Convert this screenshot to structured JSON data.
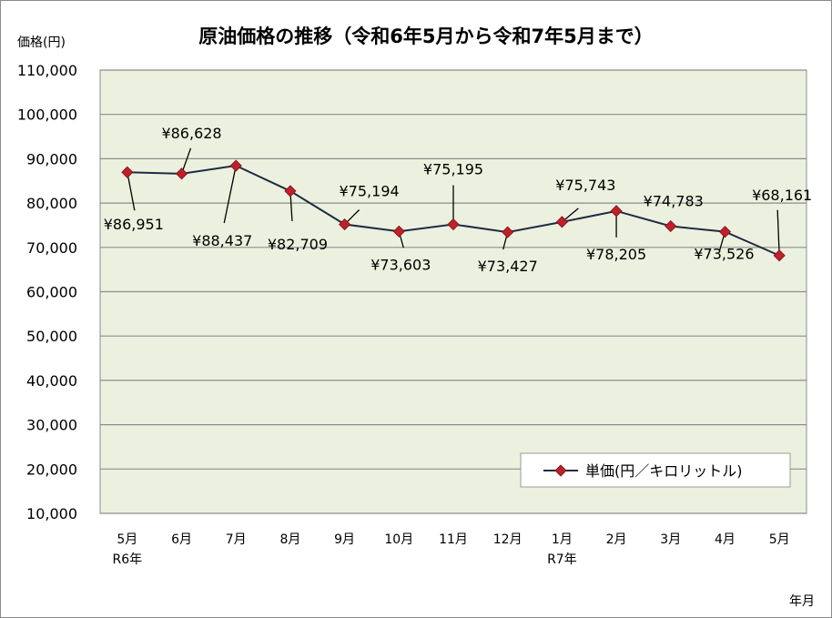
{
  "chart_data": {
    "type": "line",
    "title": "原油価格の推移（令和6年5月から令和7年5月まで）",
    "ylabel": "価格(円)",
    "xlabel": "年月",
    "ylim": [
      10000,
      110000
    ],
    "y_ticks": [
      "10,000",
      "20,000",
      "30,000",
      "40,000",
      "50,000",
      "60,000",
      "70,000",
      "80,000",
      "90,000",
      "100,000",
      "110,000"
    ],
    "categories": [
      "5月",
      "6月",
      "7月",
      "8月",
      "9月",
      "10月",
      "11月",
      "12月",
      "1月",
      "2月",
      "3月",
      "4月",
      "5月"
    ],
    "year_labels": [
      "R6年",
      "",
      "",
      "",
      "",
      "",
      "",
      "",
      "R7年",
      "",
      "",
      "",
      ""
    ],
    "grid": true,
    "legend": "bottom-right",
    "series": [
      {
        "name": "単価(円／キロリットル)",
        "values": [
          86951,
          86628,
          88437,
          82709,
          75194,
          73603,
          75195,
          73427,
          75743,
          78205,
          74783,
          73526,
          68161
        ],
        "labels": [
          "¥86,951",
          "¥86,628",
          "¥88,437",
          "¥82,709",
          "¥75,194",
          "¥73,603",
          "¥75,195",
          "¥73,427",
          "¥75,743",
          "¥78,205",
          "¥74,783",
          "¥73,526",
          "¥68,161"
        ],
        "color": "#1f2a44",
        "marker_color": "#c0202a"
      }
    ],
    "colors": {
      "plot_bg": "#ebf1de",
      "grid": "#8c8c8c"
    }
  }
}
